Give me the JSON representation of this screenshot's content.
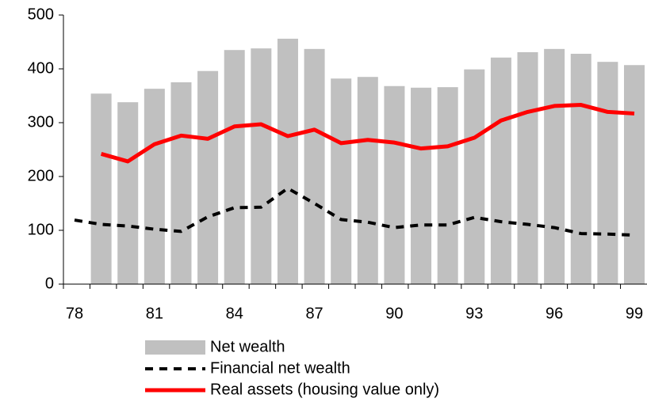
{
  "chart_data": {
    "type": "bar_line",
    "categories": [
      "78",
      null,
      null,
      "81",
      null,
      null,
      "84",
      null,
      null,
      "87",
      null,
      null,
      "90",
      null,
      null,
      "93",
      null,
      null,
      "96",
      null,
      null,
      "99"
    ],
    "series": [
      {
        "name": "Net wealth",
        "type": "bar",
        "color": "#c0c0c0",
        "values": [
          null,
          354,
          338,
          363,
          375,
          396,
          435,
          438,
          456,
          437,
          382,
          385,
          368,
          365,
          366,
          399,
          421,
          431,
          437,
          428,
          413,
          407
        ]
      },
      {
        "name": "Financial net wealth",
        "type": "line",
        "dash": true,
        "color": "#000000",
        "values": [
          119,
          111,
          108,
          102,
          98,
          125,
          142,
          143,
          178,
          150,
          120,
          115,
          105,
          110,
          110,
          124,
          116,
          111,
          105,
          94,
          93,
          91
        ]
      },
      {
        "name": "Real assets (housing value only)",
        "type": "line",
        "dash": false,
        "color": "#ff0000",
        "values": [
          null,
          242,
          228,
          260,
          276,
          270,
          293,
          297,
          275,
          287,
          262,
          268,
          263,
          252,
          256,
          272,
          304,
          320,
          331,
          333,
          320,
          317
        ]
      }
    ],
    "ylim": [
      0,
      500
    ],
    "yticks": [
      0,
      100,
      200,
      300,
      400,
      500
    ],
    "grid": false,
    "legend": "bottom"
  }
}
